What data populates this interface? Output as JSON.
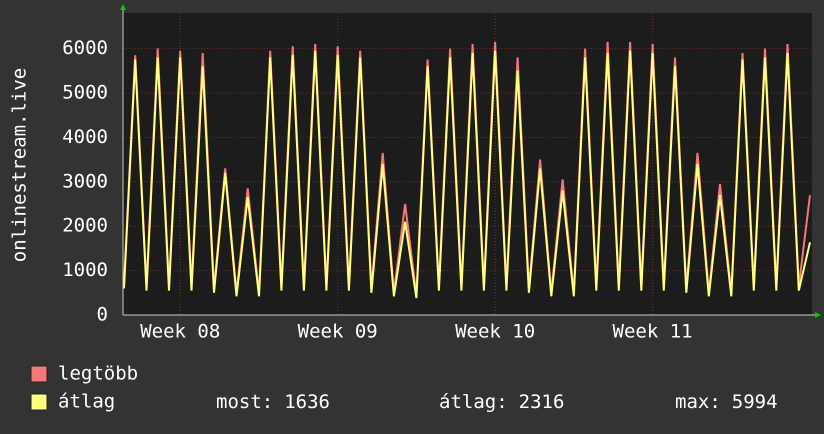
{
  "chart_data": {
    "type": "line",
    "y_label": "onlinestream.live",
    "categories": [
      null,
      null,
      null,
      null,
      null,
      "Week 08",
      null,
      null,
      null,
      null,
      null,
      null,
      null,
      null,
      null,
      null,
      null,
      null,
      null,
      "Week 09",
      null,
      null,
      null,
      null,
      null,
      null,
      null,
      null,
      null,
      null,
      null,
      null,
      null,
      "Week 10",
      null,
      null,
      null,
      null,
      null,
      null,
      null,
      null,
      null,
      null,
      null,
      null,
      null,
      "Week 11",
      null,
      null,
      null,
      null,
      null,
      null,
      null,
      null,
      null,
      null,
      null,
      null,
      null,
      null
    ],
    "series": [
      {
        "name": "legtöbb",
        "color": "#f47878",
        "values": [
          700,
          5850,
          650,
          6000,
          650,
          5950,
          650,
          5900,
          600,
          3300,
          500,
          2850,
          500,
          5950,
          650,
          6050,
          650,
          6100,
          650,
          6050,
          650,
          5950,
          600,
          3650,
          500,
          2500,
          450,
          5750,
          650,
          6000,
          650,
          6100,
          650,
          6150,
          650,
          5800,
          600,
          3500,
          500,
          3050,
          500,
          6000,
          650,
          6150,
          650,
          6150,
          650,
          6100,
          650,
          5800,
          600,
          3650,
          500,
          2950,
          500,
          5900,
          650,
          6000,
          650,
          6100,
          650,
          2700
        ]
      },
      {
        "name": "átlag",
        "color": "#ffff80",
        "values": [
          600,
          5750,
          550,
          5800,
          550,
          5800,
          550,
          5600,
          500,
          3200,
          420,
          2650,
          420,
          5800,
          550,
          5850,
          550,
          5950,
          550,
          5850,
          550,
          5800,
          500,
          3400,
          420,
          2100,
          380,
          5600,
          550,
          5800,
          550,
          5900,
          550,
          5950,
          550,
          5500,
          500,
          3300,
          420,
          2800,
          420,
          5800,
          550,
          5900,
          550,
          5950,
          550,
          5900,
          550,
          5600,
          500,
          3400,
          420,
          2700,
          420,
          5750,
          550,
          5800,
          550,
          5900,
          550,
          1636
        ]
      }
    ],
    "ylim": [
      0,
      6800
    ],
    "yticks": [
      0,
      1000,
      2000,
      3000,
      4000,
      5000,
      6000
    ],
    "grid": true,
    "stats": [
      {
        "label": "most:",
        "value": 1636
      },
      {
        "label": "átlag:",
        "value": 2316
      },
      {
        "label": "max:",
        "value": 5994
      }
    ]
  }
}
